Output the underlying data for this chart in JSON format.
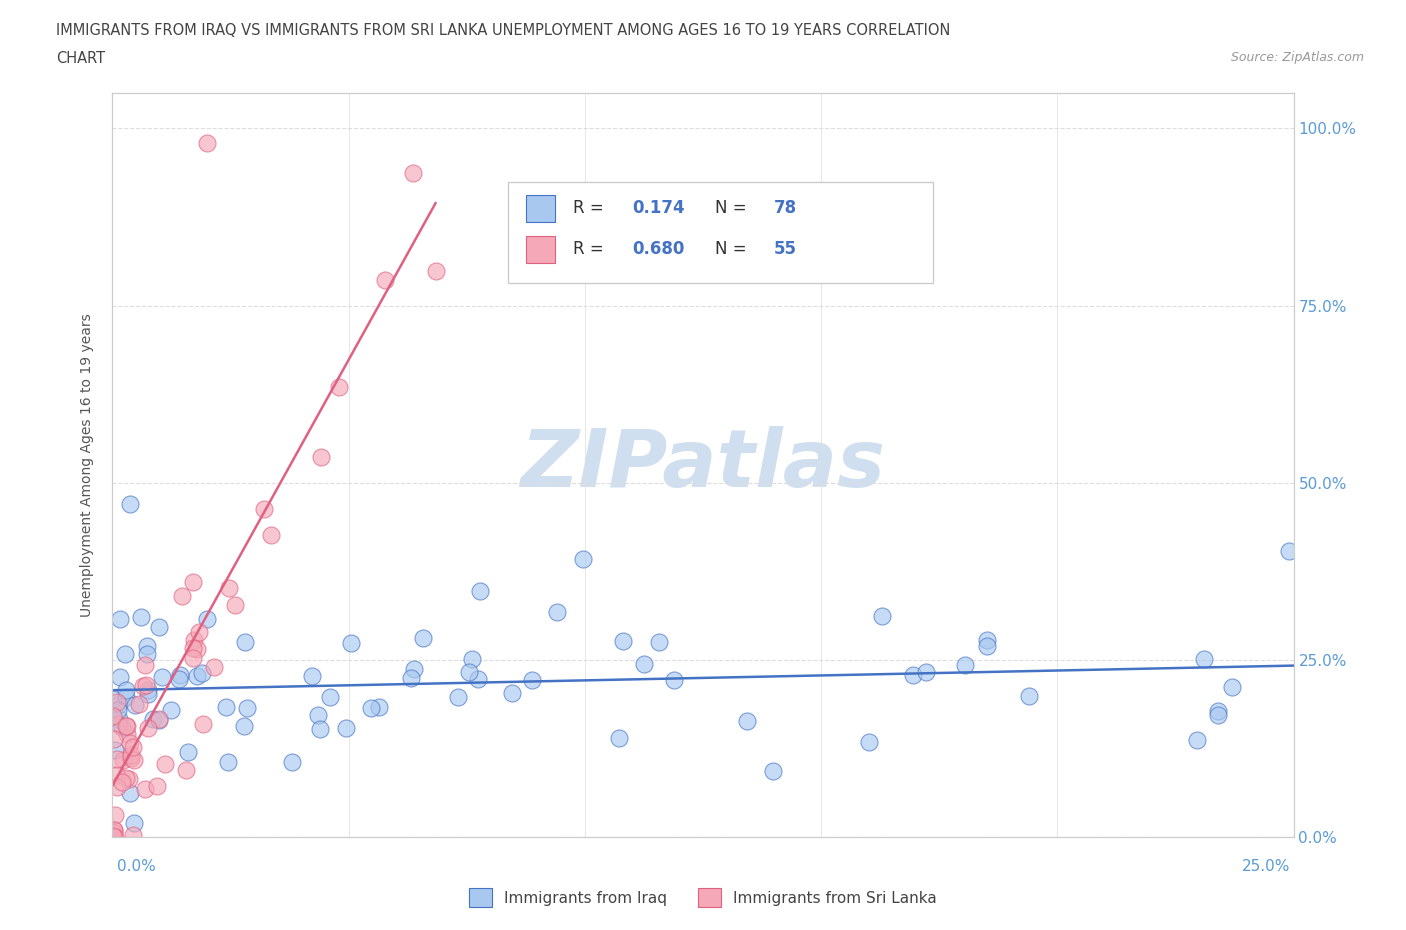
{
  "title_line1": "IMMIGRANTS FROM IRAQ VS IMMIGRANTS FROM SRI LANKA UNEMPLOYMENT AMONG AGES 16 TO 19 YEARS CORRELATION",
  "title_line2": "CHART",
  "source": "Source: ZipAtlas.com",
  "ylabel": "Unemployment Among Ages 16 to 19 years",
  "ytick_vals": [
    0.0,
    0.25,
    0.5,
    0.75,
    1.0
  ],
  "ytick_labels": [
    "0.0%",
    "25.0%",
    "50.0%",
    "75.0%",
    "100.0%"
  ],
  "xlim": [
    0.0,
    0.25
  ],
  "ylim": [
    0.0,
    1.05
  ],
  "r_iraq": "0.174",
  "n_iraq": "78",
  "r_srilanka": "0.680",
  "n_srilanka": "55",
  "color_iraq": "#A8C8F0",
  "color_srilanka": "#F4A8B8",
  "line_iraq": "#4472C4",
  "line_srilanka": "#E06080",
  "watermark_color": "#D0DFF0",
  "background_color": "#FFFFFF",
  "tick_color": "#5B9BD5",
  "grid_color": "#DDDDDD",
  "legend_text_color": "#333333",
  "legend_value_color": "#4472C4"
}
